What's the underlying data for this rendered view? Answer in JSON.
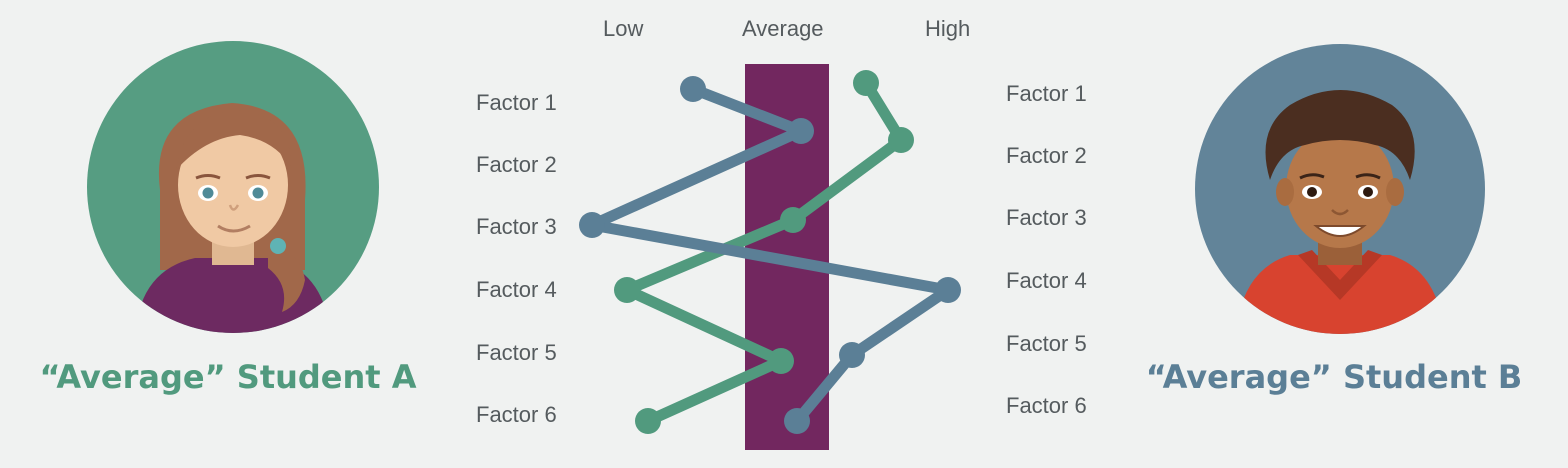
{
  "scale_labels": {
    "low": "Low",
    "average": "Average",
    "high": "High"
  },
  "factors_left": [
    "Factor 1",
    "Factor 2",
    "Factor 3",
    "Factor 4",
    "Factor 5",
    "Factor 6"
  ],
  "factors_right": [
    "Factor 1",
    "Factor 2",
    "Factor 3",
    "Factor 4",
    "Factor 5",
    "Factor 6"
  ],
  "students": {
    "a": {
      "caption": "“Average” Student A",
      "color": "#519a7e",
      "avatar_bg": "#569d82"
    },
    "b": {
      "caption": "“Average” Student B",
      "color": "#5b7f96",
      "avatar_bg": "#628499"
    }
  },
  "colors": {
    "average_band": "#72275f",
    "text": "#555b5e",
    "background": "#f0f2f1"
  }
}
